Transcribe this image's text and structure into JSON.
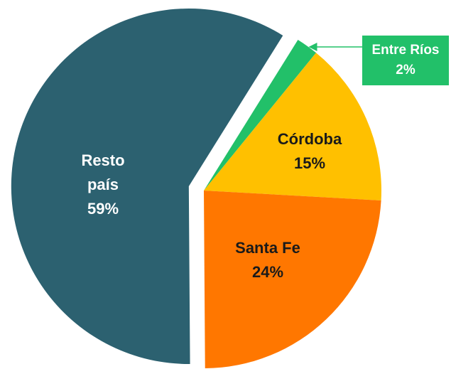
{
  "chart_data": {
    "type": "pie",
    "categories": [
      "Entre Ríos",
      "Córdoba",
      "Santa Fe",
      "Resto país"
    ],
    "values": [
      2,
      15,
      24,
      59
    ],
    "value_labels": [
      "2%",
      "15%",
      "24%",
      "59%"
    ],
    "colors": [
      "#22c069",
      "#ffc000",
      "#ff7700",
      "#2c6170"
    ]
  }
}
